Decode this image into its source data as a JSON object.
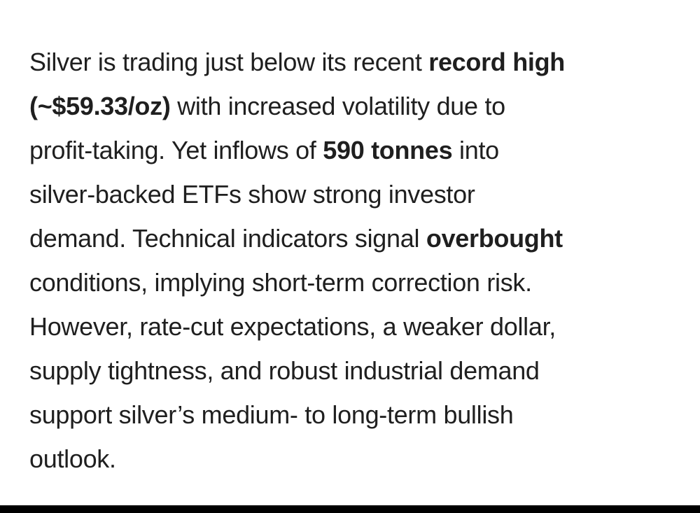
{
  "paragraph": {
    "lines": [
      [
        {
          "text": "Silver is trading just below its recent ",
          "bold": false
        },
        {
          "text": "record high",
          "bold": true
        }
      ],
      [
        {
          "text": "(~$59.33/oz)",
          "bold": true
        },
        {
          "text": " with increased volatility due to",
          "bold": false
        }
      ],
      [
        {
          "text": "profit-taking. Yet inflows of ",
          "bold": false
        },
        {
          "text": "590 tonnes",
          "bold": true
        },
        {
          "text": " into",
          "bold": false
        }
      ],
      [
        {
          "text": "silver-backed ETFs show strong investor",
          "bold": false
        }
      ],
      [
        {
          "text": "demand. Technical indicators signal ",
          "bold": false
        },
        {
          "text": "overbought",
          "bold": true
        }
      ],
      [
        {
          "text": "conditions, implying short-term correction risk.",
          "bold": false
        }
      ],
      [
        {
          "text": "However, rate-cut expectations, a weaker dollar,",
          "bold": false
        }
      ],
      [
        {
          "text": "supply tightness, and robust industrial demand",
          "bold": false
        }
      ],
      [
        {
          "text": "support silver’s medium- to long-term bullish",
          "bold": false
        }
      ],
      [
        {
          "text": "outlook.",
          "bold": false
        }
      ]
    ]
  }
}
